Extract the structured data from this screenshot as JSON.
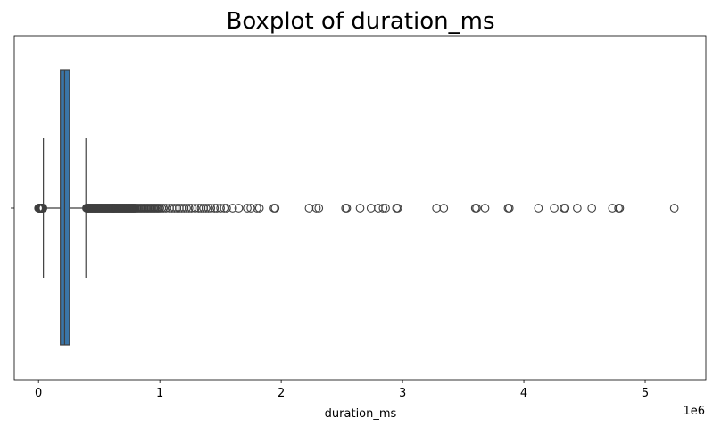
{
  "chart_data": {
    "type": "boxplot",
    "title": "Boxplot of duration_ms",
    "xlabel": "duration_ms",
    "ylabel": "",
    "x_offset_label": "1e6",
    "x_scale": 1000000,
    "xlim": [
      -200000,
      5500000
    ],
    "x_ticks": [
      0,
      1000000,
      2000000,
      3000000,
      4000000,
      5000000
    ],
    "x_tick_labels": [
      "0",
      "1",
      "2",
      "3",
      "4",
      "5"
    ],
    "orientation": "horizontal",
    "grid": false,
    "box": {
      "color": "#3a75a8",
      "whisker_low": 40000,
      "q1": 180000,
      "median": 215000,
      "q3": 255000,
      "whisker_high": 390000
    },
    "outliers_low": [
      0,
      2000,
      5000,
      8000,
      10000,
      13000,
      16000,
      19000,
      22000,
      25000,
      28000,
      31000,
      34000,
      37000
    ],
    "outliers_high": [
      395000,
      400000,
      405000,
      410000,
      415000,
      420000,
      425000,
      430000,
      435000,
      440000,
      445000,
      450000,
      455000,
      460000,
      465000,
      470000,
      475000,
      480000,
      485000,
      490000,
      495000,
      500000,
      505000,
      510000,
      515000,
      520000,
      525000,
      530000,
      535000,
      540000,
      545000,
      550000,
      555000,
      560000,
      565000,
      570000,
      575000,
      580000,
      585000,
      590000,
      595000,
      600000,
      605000,
      610000,
      615000,
      620000,
      625000,
      630000,
      635000,
      640000,
      645000,
      650000,
      655000,
      660000,
      665000,
      670000,
      675000,
      680000,
      685000,
      690000,
      695000,
      700000,
      705000,
      710000,
      715000,
      720000,
      725000,
      730000,
      735000,
      740000,
      745000,
      750000,
      755000,
      760000,
      765000,
      770000,
      775000,
      780000,
      785000,
      790000,
      795000,
      800000,
      810000,
      820000,
      830000,
      840000,
      850000,
      860000,
      870000,
      880000,
      890000,
      900000,
      910000,
      920000,
      930000,
      940000,
      950000,
      960000,
      970000,
      980000,
      990000,
      1000000,
      1015000,
      1030000,
      1050000,
      1080000,
      1100000,
      1120000,
      1140000,
      1160000,
      1180000,
      1200000,
      1220000,
      1240000,
      1260000,
      1290000,
      1320000,
      1340000,
      1360000,
      1380000,
      1400000,
      1420000,
      1450000,
      1470000,
      1500000,
      1530000,
      1550000,
      1600000,
      1650000,
      1720000,
      1750000,
      1800000,
      1820000,
      1940000,
      1950000,
      2230000,
      2290000,
      2310000,
      2530000,
      2540000,
      2650000,
      2740000,
      2800000,
      2840000,
      2860000,
      2950000,
      2960000,
      3280000,
      3340000,
      3600000,
      3610000,
      3680000,
      3870000,
      3880000,
      4120000,
      4250000,
      4330000,
      4340000,
      4440000,
      4560000,
      4730000,
      4780000,
      4790000,
      5240000
    ]
  }
}
